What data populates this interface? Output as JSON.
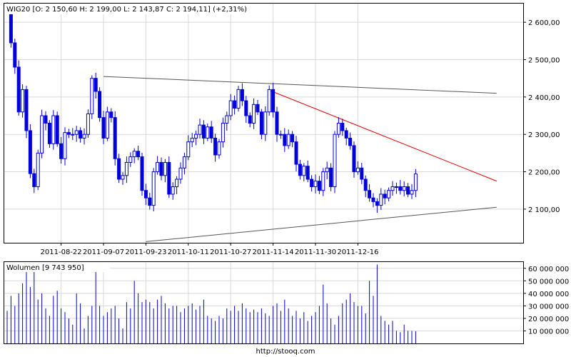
{
  "chart_data": [
    {
      "type": "candlestick",
      "title": "WIG20 [O: 2 150,60  H: 2 199,00  L: 2 143,87  C: 2 194,11] (+2,31%)",
      "ohlc_last": {
        "open": 2150.6,
        "high": 2199.0,
        "low": 2143.87,
        "close": 2194.11,
        "change_pct": 2.31
      },
      "ylim": [
        2010,
        2650
      ],
      "yticks": [
        2100,
        2200,
        2300,
        2400,
        2500,
        2600
      ],
      "ytick_labels": [
        "2 100,00",
        "2 200,00",
        "2 300,00",
        "2 400,00",
        "2 500,00",
        "2 600,00"
      ],
      "xtick_labels": [
        "2011-08-22",
        "2011-09-07",
        "2011-09-23",
        "2011-10-11",
        "2011-10-27",
        "2011-11-14",
        "2011-11-30",
        "2011-12-16"
      ],
      "xtick_index": [
        14,
        25,
        36,
        47,
        58,
        69,
        80,
        91
      ],
      "grid": true,
      "closes": [
        2630,
        2545,
        2480,
        2360,
        2420,
        2310,
        2195,
        2160,
        2250,
        2350,
        2330,
        2275,
        2350,
        2275,
        2235,
        2305,
        2300,
        2300,
        2310,
        2290,
        2300,
        2355,
        2450,
        2415,
        2345,
        2290,
        2360,
        2345,
        2235,
        2180,
        2190,
        2225,
        2240,
        2255,
        2240,
        2150,
        2130,
        2110,
        2200,
        2225,
        2190,
        2225,
        2140,
        2160,
        2180,
        2210,
        2240,
        2280,
        2290,
        2300,
        2325,
        2290,
        2320,
        2290,
        2245,
        2280,
        2330,
        2350,
        2390,
        2370,
        2420,
        2390,
        2350,
        2330,
        2380,
        2360,
        2300,
        2360,
        2420,
        2360,
        2300,
        2300,
        2270,
        2300,
        2280,
        2220,
        2190,
        2215,
        2180,
        2160,
        2175,
        2150,
        2200,
        2210,
        2160,
        2300,
        2330,
        2310,
        2290,
        2270,
        2200,
        2210,
        2180,
        2150,
        2130,
        2120,
        2110,
        2140,
        2130,
        2150,
        2160,
        2160,
        2150,
        2160,
        2140,
        2150,
        2194.11
      ],
      "trendlines": [
        {
          "from": {
            "index": 25,
            "value": 2455
          },
          "to": {
            "index": 127,
            "value": 2410
          },
          "color": "#555555"
        },
        {
          "from": {
            "index": 36,
            "value": 2013
          },
          "to": {
            "index": 127,
            "value": 2105
          },
          "color": "#555555"
        },
        {
          "from": {
            "index": 68,
            "value": 2418
          },
          "to": {
            "index": 127,
            "value": 2175
          },
          "color": "#e00000"
        }
      ]
    },
    {
      "type": "bar",
      "title": "Wolumen [9 743 950]",
      "ylim": [
        0,
        65000000
      ],
      "yticks": [
        10000000,
        20000000,
        30000000,
        40000000,
        50000000,
        60000000
      ],
      "ytick_labels": [
        "10 000 000",
        "20 000 000",
        "30 000 000",
        "40 000 000",
        "50 000 000",
        "60 000 000"
      ],
      "values": [
        26000000,
        38000000,
        30000000,
        40000000,
        48000000,
        58000000,
        45000000,
        60000000,
        35000000,
        40000000,
        28000000,
        22000000,
        38000000,
        42000000,
        28000000,
        25000000,
        20000000,
        15000000,
        40000000,
        32000000,
        12000000,
        22000000,
        30000000,
        57000000,
        30000000,
        22000000,
        25000000,
        28000000,
        30000000,
        20000000,
        12000000,
        33000000,
        28000000,
        50000000,
        40000000,
        33000000,
        35000000,
        33000000,
        28000000,
        35000000,
        38000000,
        32000000,
        28000000,
        30000000,
        30000000,
        25000000,
        28000000,
        30000000,
        32000000,
        27000000,
        30000000,
        35000000,
        22000000,
        20000000,
        18000000,
        22000000,
        20000000,
        28000000,
        26000000,
        30000000,
        26000000,
        32000000,
        28000000,
        25000000,
        27000000,
        25000000,
        28000000,
        24000000,
        22000000,
        30000000,
        32000000,
        26000000,
        35000000,
        28000000,
        22000000,
        26000000,
        20000000,
        25000000,
        18000000,
        22000000,
        25000000,
        30000000,
        47000000,
        32000000,
        20000000,
        15000000,
        22000000,
        32000000,
        35000000,
        40000000,
        33000000,
        30000000,
        30000000,
        24000000,
        50000000,
        38000000,
        63000000,
        22000000,
        18000000,
        15000000,
        18000000,
        10000000,
        9000000,
        15000000,
        10000000,
        10000000,
        9743950
      ]
    }
  ],
  "footer": {
    "source": "http://stooq.com"
  }
}
